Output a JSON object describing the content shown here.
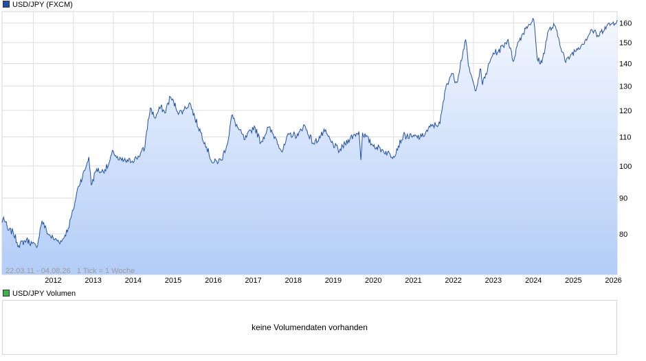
{
  "chart_data": {
    "type": "area",
    "series": [
      {
        "name": "USD/JPY (FXCM)",
        "color": "#1f4fa8",
        "points": [
          [
            "2011-03-22",
            83.0
          ],
          [
            "2011-04-05",
            84.5
          ],
          [
            "2011-05-15",
            81.0
          ],
          [
            "2011-07-01",
            80.5
          ],
          [
            "2011-08-20",
            77.0
          ],
          [
            "2011-10-31",
            78.5
          ],
          [
            "2011-12-20",
            77.5
          ],
          [
            "2012-02-01",
            76.5
          ],
          [
            "2012-03-20",
            83.5
          ],
          [
            "2012-05-15",
            80.0
          ],
          [
            "2012-07-15",
            78.5
          ],
          [
            "2012-09-15",
            78.0
          ],
          [
            "2012-11-15",
            81.5
          ],
          [
            "2012-12-31",
            86.5
          ],
          [
            "2013-02-15",
            93.5
          ],
          [
            "2013-04-15",
            98.5
          ],
          [
            "2013-05-22",
            103.0
          ],
          [
            "2013-06-13",
            94.0
          ],
          [
            "2013-08-01",
            99.0
          ],
          [
            "2013-09-15",
            98.0
          ],
          [
            "2013-11-15",
            100.0
          ],
          [
            "2013-12-31",
            105.0
          ],
          [
            "2014-02-15",
            102.0
          ],
          [
            "2014-05-15",
            101.5
          ],
          [
            "2014-07-31",
            102.5
          ],
          [
            "2014-10-15",
            106.0
          ],
          [
            "2014-10-31",
            112.0
          ],
          [
            "2014-12-05",
            121.0
          ],
          [
            "2015-01-15",
            117.0
          ],
          [
            "2015-03-10",
            121.5
          ],
          [
            "2015-04-15",
            119.0
          ],
          [
            "2015-06-05",
            125.5
          ],
          [
            "2015-08-24",
            119.0
          ],
          [
            "2015-09-30",
            120.0
          ],
          [
            "2015-12-01",
            123.0
          ],
          [
            "2016-01-15",
            117.0
          ],
          [
            "2016-04-15",
            108.0
          ],
          [
            "2016-06-24",
            101.0
          ],
          [
            "2016-09-15",
            102.0
          ],
          [
            "2016-11-15",
            109.0
          ],
          [
            "2016-12-15",
            118.0
          ],
          [
            "2017-02-15",
            113.0
          ],
          [
            "2017-04-15",
            109.0
          ],
          [
            "2017-07-10",
            114.0
          ],
          [
            "2017-09-08",
            108.0
          ],
          [
            "2017-11-15",
            113.5
          ],
          [
            "2018-01-31",
            109.0
          ],
          [
            "2018-03-23",
            104.7
          ],
          [
            "2018-05-22",
            111.0
          ],
          [
            "2018-08-15",
            110.5
          ],
          [
            "2018-10-04",
            114.5
          ],
          [
            "2019-01-03",
            107.5
          ],
          [
            "2019-04-15",
            112.0
          ],
          [
            "2019-06-15",
            108.0
          ],
          [
            "2019-08-26",
            105.0
          ],
          [
            "2019-11-15",
            109.0
          ],
          [
            "2020-02-20",
            112.0
          ],
          [
            "2020-03-09",
            102.0
          ],
          [
            "2020-03-24",
            111.5
          ],
          [
            "2020-06-15",
            107.5
          ],
          [
            "2020-09-15",
            105.5
          ],
          [
            "2020-12-31",
            103.2
          ],
          [
            "2021-03-31",
            110.5
          ],
          [
            "2021-06-15",
            110.0
          ],
          [
            "2021-09-15",
            110.0
          ],
          [
            "2021-12-15",
            114.0
          ],
          [
            "2022-03-01",
            115.0
          ],
          [
            "2022-04-28",
            130.5
          ],
          [
            "2022-06-15",
            135.5
          ],
          [
            "2022-08-01",
            131.5
          ],
          [
            "2022-10-21",
            151.5
          ],
          [
            "2022-11-15",
            139.0
          ],
          [
            "2023-01-16",
            128.0
          ],
          [
            "2023-03-08",
            137.5
          ],
          [
            "2023-03-24",
            130.5
          ],
          [
            "2023-06-30",
            145.0
          ],
          [
            "2023-08-15",
            145.5
          ],
          [
            "2023-11-13",
            151.5
          ],
          [
            "2023-12-28",
            141.0
          ],
          [
            "2024-02-15",
            150.5
          ],
          [
            "2024-04-29",
            158.0
          ],
          [
            "2024-07-03",
            161.9
          ],
          [
            "2024-08-05",
            142.0
          ],
          [
            "2024-09-16",
            140.3
          ],
          [
            "2024-11-15",
            156.0
          ],
          [
            "2025-01-10",
            158.5
          ],
          [
            "2025-04-22",
            140.5
          ],
          [
            "2025-06-15",
            144.5
          ],
          [
            "2025-08-15",
            147.5
          ],
          [
            "2025-10-15",
            151.0
          ],
          [
            "2025-12-15",
            156.5
          ],
          [
            "2026-02-15",
            153.0
          ],
          [
            "2026-04-15",
            158.0
          ],
          [
            "2026-06-15",
            159.5
          ],
          [
            "2026-08-04",
            161.5
          ]
        ]
      }
    ],
    "x_tick_labels": [
      "2012",
      "2013",
      "2014",
      "2015",
      "2016",
      "2017",
      "2018",
      "2019",
      "2020",
      "2021",
      "2022",
      "2023",
      "2024",
      "2025",
      "2026"
    ],
    "y_ticks": [
      80,
      90,
      100,
      110,
      120,
      130,
      140,
      150,
      160
    ],
    "ylim": [
      70,
      166
    ],
    "y_scale": "log",
    "xlim": [
      "2011-03-22",
      "2026-08-04"
    ],
    "grid": true,
    "fill_gradient": [
      "#f3f7fe",
      "#b3cdf7"
    ]
  },
  "legend_price": {
    "label": "USD/JPY (FXCM)",
    "color": "#1f4fa8"
  },
  "legend_volume": {
    "label": "USD/JPY Volumen",
    "color": "#39b54a"
  },
  "info_text": "22.03.11 - 04.08.26   1 Tick = 1 Woche",
  "volume_message": "keine Volumendaten vorhanden"
}
